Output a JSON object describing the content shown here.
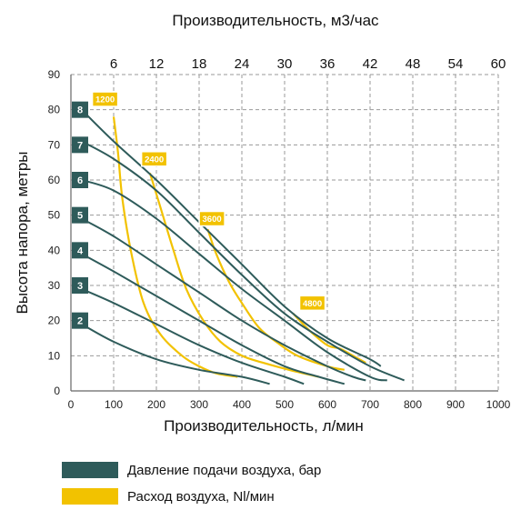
{
  "chart_data": {
    "type": "line",
    "title": "",
    "top_axis_label": "Производительность, м3/час",
    "top_ticks": [
      6,
      12,
      18,
      24,
      30,
      36,
      42,
      48,
      54,
      60
    ],
    "xlabel": "Производительность, л/мин",
    "ylabel": "Высота напора, метры",
    "xlim": [
      0,
      1000
    ],
    "ylim": [
      0,
      90
    ],
    "x_ticks": [
      0,
      100,
      200,
      300,
      400,
      500,
      600,
      700,
      800,
      900,
      1000
    ],
    "y_ticks": [
      0,
      10,
      20,
      30,
      40,
      50,
      60,
      70,
      80,
      90
    ],
    "grid": true,
    "colors": {
      "pressure": "#2e5b5a",
      "air": "#f2c200"
    },
    "pressure_series": [
      {
        "name": "2",
        "points": [
          [
            25,
            19
          ],
          [
            100,
            14
          ],
          [
            200,
            9
          ],
          [
            300,
            6
          ],
          [
            400,
            4
          ],
          [
            465,
            2
          ]
        ]
      },
      {
        "name": "3",
        "points": [
          [
            25,
            29
          ],
          [
            100,
            25
          ],
          [
            200,
            19
          ],
          [
            300,
            13
          ],
          [
            400,
            8
          ],
          [
            500,
            4
          ],
          [
            545,
            2
          ]
        ]
      },
      {
        "name": "4",
        "points": [
          [
            25,
            39
          ],
          [
            100,
            34
          ],
          [
            200,
            27
          ],
          [
            300,
            20
          ],
          [
            400,
            13
          ],
          [
            500,
            7
          ],
          [
            580,
            4
          ],
          [
            640,
            2
          ]
        ]
      },
      {
        "name": "5",
        "points": [
          [
            25,
            49
          ],
          [
            100,
            44
          ],
          [
            200,
            36
          ],
          [
            300,
            28
          ],
          [
            400,
            20
          ],
          [
            500,
            13
          ],
          [
            600,
            7
          ],
          [
            660,
            4
          ],
          [
            690,
            3
          ]
        ]
      },
      {
        "name": "6",
        "points": [
          [
            25,
            60
          ],
          [
            100,
            57
          ],
          [
            200,
            49
          ],
          [
            300,
            39
          ],
          [
            400,
            29
          ],
          [
            500,
            20
          ],
          [
            600,
            11
          ],
          [
            700,
            4
          ],
          [
            740,
            3
          ]
        ]
      },
      {
        "name": "7",
        "points": [
          [
            25,
            71
          ],
          [
            100,
            66
          ],
          [
            200,
            57
          ],
          [
            300,
            45
          ],
          [
            400,
            33
          ],
          [
            500,
            22
          ],
          [
            600,
            14
          ],
          [
            700,
            7
          ],
          [
            780,
            3
          ]
        ]
      },
      {
        "name": "8",
        "points": [
          [
            25,
            80
          ],
          [
            100,
            71
          ],
          [
            200,
            60
          ],
          [
            300,
            48
          ],
          [
            400,
            36
          ],
          [
            500,
            24
          ],
          [
            600,
            15
          ],
          [
            700,
            9
          ],
          [
            725,
            7
          ]
        ]
      }
    ],
    "air_series": [
      {
        "name": "1200",
        "points": [
          [
            100,
            78
          ],
          [
            110,
            68
          ],
          [
            120,
            55
          ],
          [
            140,
            40
          ],
          [
            170,
            25
          ],
          [
            210,
            16
          ],
          [
            260,
            10
          ],
          [
            300,
            7
          ],
          [
            340,
            5
          ],
          [
            390,
            4
          ]
        ]
      },
      {
        "name": "2400",
        "points": [
          [
            185,
            62
          ],
          [
            210,
            52
          ],
          [
            240,
            40
          ],
          [
            270,
            29
          ],
          [
            310,
            20
          ],
          [
            350,
            14
          ],
          [
            400,
            10
          ],
          [
            450,
            8
          ],
          [
            510,
            6
          ],
          [
            580,
            4
          ]
        ]
      },
      {
        "name": "3600",
        "points": [
          [
            320,
            46
          ],
          [
            340,
            39
          ],
          [
            370,
            31
          ],
          [
            400,
            25
          ],
          [
            440,
            18
          ],
          [
            480,
            14
          ],
          [
            530,
            10
          ],
          [
            600,
            7
          ],
          [
            640,
            6
          ]
        ]
      },
      {
        "name": "4800",
        "points": [
          [
            520,
            22
          ],
          [
            560,
            17
          ],
          [
            600,
            13
          ],
          [
            630,
            12
          ],
          [
            660,
            10
          ],
          [
            690,
            8
          ]
        ]
      }
    ],
    "series_labels": {
      "pressure": [
        {
          "text": "8",
          "y": 80
        },
        {
          "text": "7",
          "y": 70
        },
        {
          "text": "6",
          "y": 60
        },
        {
          "text": "5",
          "y": 50
        },
        {
          "text": "4",
          "y": 40
        },
        {
          "text": "3",
          "y": 30
        },
        {
          "text": "2",
          "y": 20
        }
      ],
      "air": [
        {
          "text": "1200",
          "x": 80,
          "y": 83
        },
        {
          "text": "2400",
          "x": 195,
          "y": 66
        },
        {
          "text": "3600",
          "x": 330,
          "y": 49
        },
        {
          "text": "4800",
          "x": 565,
          "y": 25
        }
      ]
    }
  },
  "legend": {
    "pressure_label": "Давление подачи воздуха, бар",
    "air_label": "Расход воздуха, Nl/мин"
  }
}
